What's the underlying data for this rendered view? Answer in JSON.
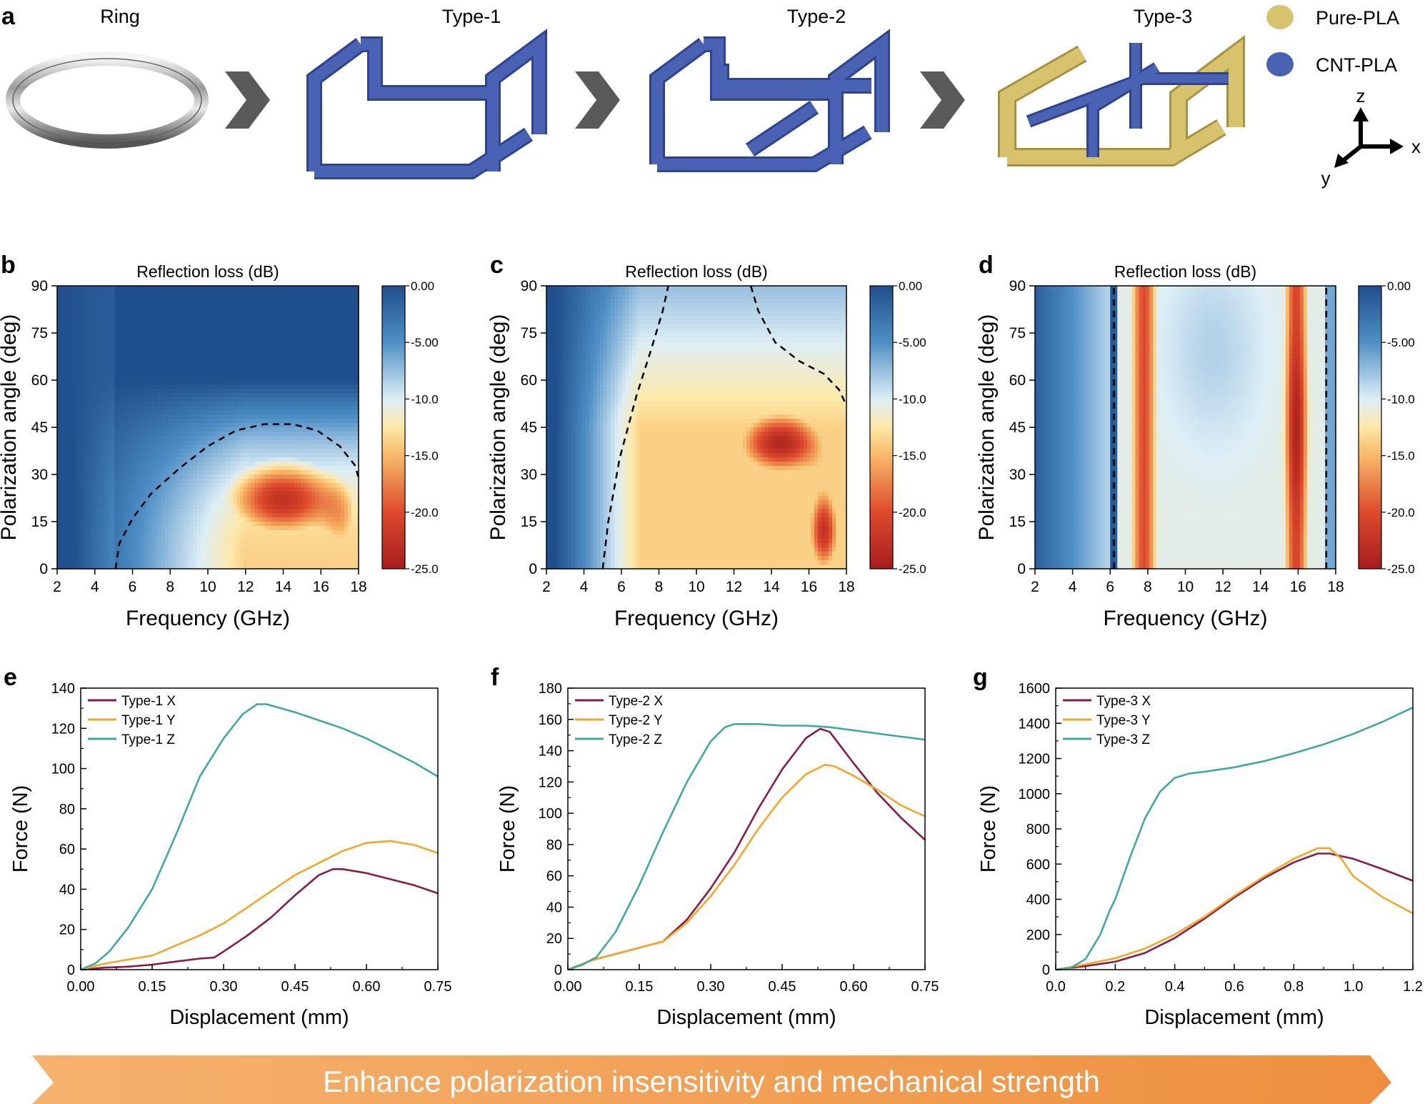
{
  "panel_a": {
    "label": "a",
    "steps": [
      "Ring",
      "Type-1",
      "Type-2",
      "Type-3"
    ],
    "legend": [
      {
        "label": "Pure-PLA",
        "color": "#d8c36d"
      },
      {
        "label": "CNT-PLA",
        "color": "#4a62b3"
      }
    ],
    "axes": {
      "z": "z",
      "x": "x",
      "y": "y"
    }
  },
  "colors": {
    "cnt": "#4a62b3",
    "pla": "#d8c36d",
    "arrow": "#5a5a5a",
    "banner": "#f0a060"
  },
  "banner": {
    "text": "Enhance polarization insensitivity and mechanical strength"
  },
  "chart_data": [
    {
      "type": "heatmap",
      "label": "b",
      "title": "Reflection loss (dB)",
      "xlabel": "Frequency (GHz)",
      "ylabel": "Polarization angle (deg)",
      "xlim": [
        2,
        18
      ],
      "ylim": [
        0,
        90
      ],
      "xticks": [
        "2",
        "4",
        "6",
        "8",
        "10",
        "12",
        "14",
        "16",
        "18"
      ],
      "yticks": [
        "0",
        "15",
        "30",
        "45",
        "60",
        "75",
        "90"
      ],
      "colorbar": {
        "ticks": [
          "0.00",
          "-5.00",
          "-10.0",
          "-15.0",
          "-20.0",
          "-25.0"
        ],
        "range": [
          0,
          -25
        ]
      },
      "contour_level": -10,
      "contour": [
        [
          5.1,
          0
        ],
        [
          5.3,
          8
        ],
        [
          6,
          16
        ],
        [
          7,
          24
        ],
        [
          8.5,
          32
        ],
        [
          10,
          39
        ],
        [
          11.5,
          44
        ],
        [
          13,
          46
        ],
        [
          14.5,
          46
        ],
        [
          15.8,
          44
        ],
        [
          17,
          39
        ],
        [
          17.8,
          33
        ],
        [
          18,
          29
        ]
      ]
    },
    {
      "type": "heatmap",
      "label": "c",
      "title": "Reflection loss (dB)",
      "xlabel": "Frequency (GHz)",
      "ylabel": "Polarization angle (deg)",
      "xlim": [
        2,
        18
      ],
      "ylim": [
        0,
        90
      ],
      "xticks": [
        "2",
        "4",
        "6",
        "8",
        "10",
        "12",
        "14",
        "16",
        "18"
      ],
      "yticks": [
        "0",
        "15",
        "30",
        "45",
        "60",
        "75",
        "90"
      ],
      "colorbar": {
        "ticks": [
          "0.00",
          "-5.00",
          "-10.0",
          "-15.0",
          "-20.0",
          "-25.0"
        ],
        "range": [
          0,
          -25
        ]
      },
      "contour_level": -10,
      "contour": [
        [
          5,
          0
        ],
        [
          5.3,
          15
        ],
        [
          5.9,
          35
        ],
        [
          6.8,
          55
        ],
        [
          7.6,
          70
        ],
        [
          8.2,
          82
        ],
        [
          8.5,
          90
        ]
      ],
      "contour2": [
        [
          12.9,
          90
        ],
        [
          13.3,
          82
        ],
        [
          14.2,
          72
        ],
        [
          15.5,
          66
        ],
        [
          16.8,
          62
        ],
        [
          17.6,
          57
        ],
        [
          18,
          52
        ]
      ]
    },
    {
      "type": "heatmap",
      "label": "d",
      "title": "Reflection loss (dB)",
      "xlabel": "Frequency (GHz)",
      "ylabel": "Polarization angle (deg)",
      "xlim": [
        2,
        18
      ],
      "ylim": [
        0,
        90
      ],
      "xticks": [
        "2",
        "4",
        "6",
        "8",
        "10",
        "12",
        "14",
        "16",
        "18"
      ],
      "yticks": [
        "0",
        "15",
        "30",
        "45",
        "60",
        "75",
        "90"
      ],
      "colorbar": {
        "ticks": [
          "0.00",
          "-5.00",
          "-10.0",
          "-15.0",
          "-20.0",
          "-25.0"
        ],
        "range": [
          0,
          -25
        ]
      },
      "contour_level": -10,
      "contour": [
        [
          6.2,
          0
        ],
        [
          6.2,
          90
        ]
      ],
      "contour2": [
        [
          17.5,
          0
        ],
        [
          17.5,
          90
        ]
      ]
    },
    {
      "type": "line",
      "label": "e",
      "xlabel": "Displacement (mm)",
      "ylabel": "Force (N)",
      "xlim": [
        0,
        0.75
      ],
      "ylim": [
        0,
        140
      ],
      "xticks": [
        "0.00",
        "0.15",
        "0.30",
        "0.45",
        "0.60",
        "0.75"
      ],
      "yticks": [
        "0",
        "20",
        "40",
        "60",
        "80",
        "100",
        "120",
        "140"
      ],
      "series": [
        {
          "name": "Type-1 X",
          "color": "#8b1a47",
          "x": [
            0,
            0.05,
            0.1,
            0.15,
            0.2,
            0.25,
            0.28,
            0.3,
            0.35,
            0.4,
            0.45,
            0.5,
            0.53,
            0.55,
            0.6,
            0.65,
            0.7,
            0.75
          ],
          "y": [
            0,
            1,
            1.5,
            2.5,
            4,
            5.5,
            6,
            9,
            17,
            26,
            37,
            47,
            50,
            50,
            48,
            45,
            42,
            38
          ]
        },
        {
          "name": "Type-1 Y",
          "color": "#f5a623",
          "x": [
            0,
            0.05,
            0.1,
            0.15,
            0.2,
            0.25,
            0.3,
            0.35,
            0.4,
            0.45,
            0.5,
            0.55,
            0.6,
            0.65,
            0.7,
            0.75
          ],
          "y": [
            0,
            3,
            5,
            7,
            12,
            17,
            23,
            31,
            39,
            47,
            53,
            59,
            63,
            64,
            62,
            58
          ]
        },
        {
          "name": "Type-1 Z",
          "color": "#3fa9a0",
          "x": [
            0,
            0.03,
            0.06,
            0.1,
            0.15,
            0.2,
            0.25,
            0.3,
            0.34,
            0.37,
            0.39,
            0.42,
            0.45,
            0.5,
            0.55,
            0.6,
            0.65,
            0.7,
            0.75
          ],
          "y": [
            0,
            3,
            9,
            21,
            40,
            67,
            96,
            115,
            127,
            132,
            132,
            130,
            128,
            124,
            120,
            115,
            109,
            103,
            96
          ]
        }
      ]
    },
    {
      "type": "line",
      "label": "f",
      "xlabel": "Displacement (mm)",
      "ylabel": "Force (N)",
      "xlim": [
        0,
        0.75
      ],
      "ylim": [
        0,
        180
      ],
      "xticks": [
        "0.00",
        "0.15",
        "0.30",
        "0.45",
        "0.60",
        "0.75"
      ],
      "yticks": [
        "0",
        "20",
        "40",
        "60",
        "80",
        "100",
        "120",
        "140",
        "160",
        "180"
      ],
      "series": [
        {
          "name": "Type-2 X",
          "color": "#8b1a47",
          "x": [
            0,
            0.05,
            0.1,
            0.15,
            0.2,
            0.25,
            0.3,
            0.35,
            0.4,
            0.45,
            0.5,
            0.53,
            0.55,
            0.6,
            0.65,
            0.7,
            0.75
          ],
          "y": [
            0,
            6,
            10,
            14,
            18,
            32,
            52,
            75,
            103,
            128,
            148,
            154,
            152,
            132,
            113,
            97,
            83
          ]
        },
        {
          "name": "Type-2 Y",
          "color": "#f5a623",
          "x": [
            0,
            0.05,
            0.1,
            0.15,
            0.2,
            0.25,
            0.3,
            0.35,
            0.4,
            0.45,
            0.5,
            0.54,
            0.56,
            0.6,
            0.65,
            0.7,
            0.75
          ],
          "y": [
            0,
            6,
            10,
            14,
            18,
            30,
            47,
            67,
            90,
            110,
            125,
            131,
            130,
            124,
            115,
            105,
            98
          ]
        },
        {
          "name": "Type-2 Z",
          "color": "#3fa9a0",
          "x": [
            0,
            0.03,
            0.06,
            0.1,
            0.15,
            0.2,
            0.25,
            0.3,
            0.33,
            0.35,
            0.4,
            0.45,
            0.5,
            0.55,
            0.6,
            0.65,
            0.7,
            0.75
          ],
          "y": [
            0,
            3,
            8,
            24,
            54,
            88,
            120,
            146,
            155,
            157,
            157,
            156,
            156,
            155,
            153,
            151,
            149,
            147
          ]
        }
      ]
    },
    {
      "type": "line",
      "label": "g",
      "xlabel": "Displacement (mm)",
      "ylabel": "Force (N)",
      "xlim": [
        0,
        1.2
      ],
      "ylim": [
        0,
        1600
      ],
      "xticks": [
        "0.0",
        "0.2",
        "0.4",
        "0.6",
        "0.8",
        "1.0",
        "1.2"
      ],
      "yticks": [
        "0",
        "200",
        "400",
        "600",
        "800",
        "1000",
        "1200",
        "1400",
        "1600"
      ],
      "series": [
        {
          "name": "Type-3 X",
          "color": "#8b1a47",
          "x": [
            0,
            0.1,
            0.2,
            0.3,
            0.4,
            0.5,
            0.6,
            0.7,
            0.8,
            0.88,
            0.92,
            1.0,
            1.1,
            1.2
          ],
          "y": [
            0,
            20,
            45,
            95,
            180,
            290,
            410,
            520,
            610,
            660,
            660,
            630,
            570,
            505
          ]
        },
        {
          "name": "Type-3 Y",
          "color": "#f5a623",
          "x": [
            0,
            0.1,
            0.2,
            0.3,
            0.4,
            0.5,
            0.6,
            0.7,
            0.8,
            0.88,
            0.92,
            0.96,
            1.0,
            1.1,
            1.2
          ],
          "y": [
            0,
            30,
            65,
            120,
            200,
            300,
            420,
            530,
            630,
            690,
            690,
            630,
            530,
            410,
            320
          ]
        },
        {
          "name": "Type-3 Z",
          "color": "#3fa9a0",
          "x": [
            0,
            0.05,
            0.1,
            0.15,
            0.18,
            0.2,
            0.25,
            0.3,
            0.35,
            0.4,
            0.45,
            0.5,
            0.6,
            0.7,
            0.8,
            0.9,
            1.0,
            1.1,
            1.2
          ],
          "y": [
            0,
            10,
            60,
            200,
            330,
            400,
            640,
            860,
            1010,
            1090,
            1115,
            1125,
            1150,
            1185,
            1230,
            1280,
            1340,
            1410,
            1490
          ]
        }
      ]
    }
  ]
}
